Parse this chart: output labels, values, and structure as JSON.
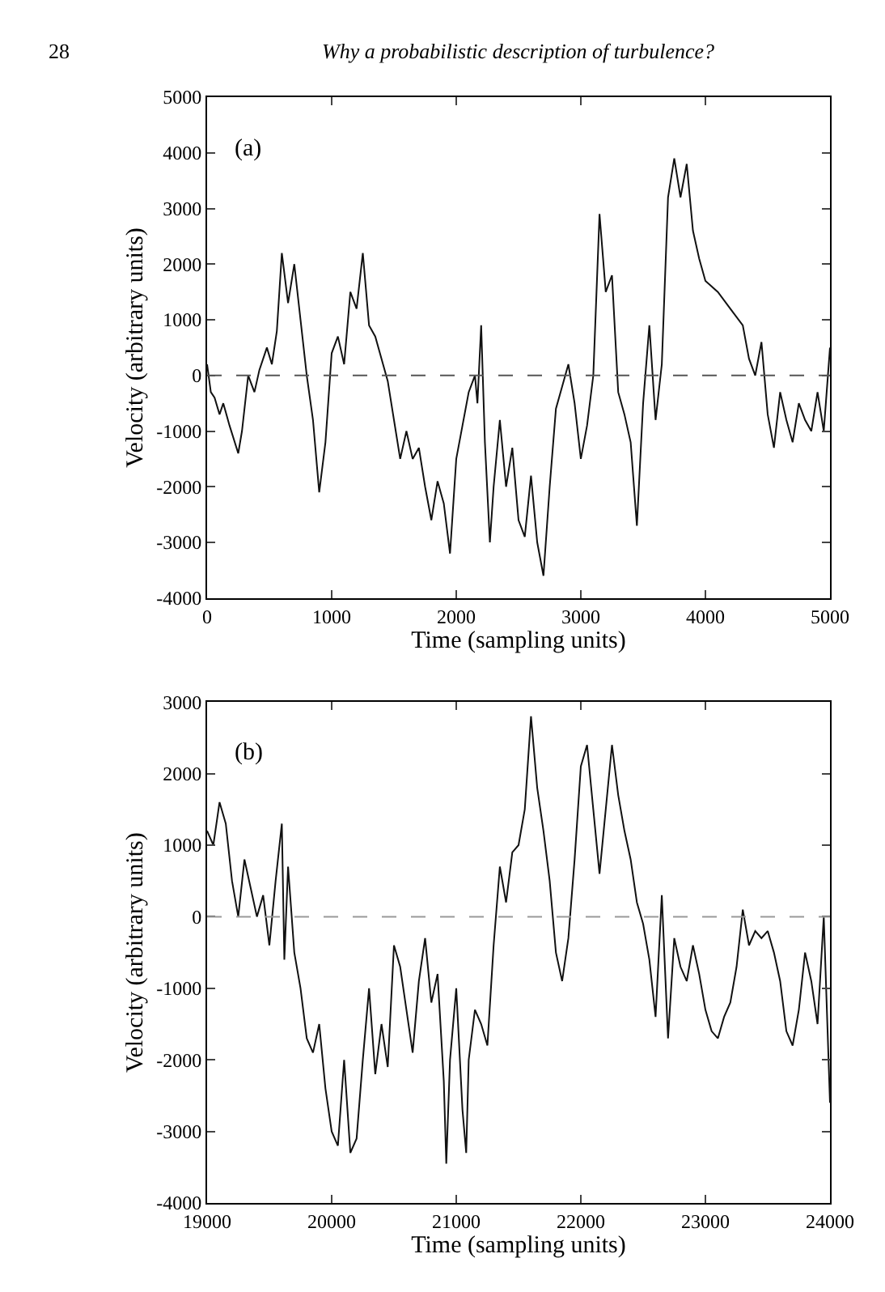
{
  "chart_data": [
    {
      "type": "line",
      "title": "Why a probabilistic description of turbulence?",
      "annotations": [
        "28",
        "(a)"
      ],
      "xlabel": "Time (sampling units)",
      "ylabel": "Velocity (arbitrary units)",
      "xlim": [
        0,
        5000
      ],
      "ylim": [
        -4000,
        5000
      ],
      "xticks": [
        0,
        1000,
        2000,
        3000,
        4000,
        5000
      ],
      "yticks": [
        -4000,
        -3000,
        -2000,
        -1000,
        0,
        1000,
        2000,
        3000,
        4000,
        5000
      ],
      "marker": "none",
      "line_style": "solid",
      "ref_lines": [
        {
          "axis": "y",
          "value": 0,
          "label": null,
          "line_style": "dashed",
          "color": "#555555"
        }
      ],
      "series": [
        {
          "color": "#111111",
          "x": [
            0,
            30,
            60,
            100,
            130,
            180,
            250,
            280,
            330,
            380,
            420,
            480,
            520,
            560,
            600,
            650,
            700,
            750,
            800,
            850,
            900,
            950,
            1000,
            1050,
            1100,
            1150,
            1200,
            1250,
            1300,
            1350,
            1400,
            1450,
            1500,
            1550,
            1600,
            1650,
            1700,
            1750,
            1800,
            1850,
            1900,
            1950,
            2000,
            2050,
            2100,
            2150,
            2170,
            2200,
            2230,
            2270,
            2300,
            2350,
            2400,
            2450,
            2500,
            2550,
            2600,
            2650,
            2700,
            2750,
            2800,
            2850,
            2900,
            2950,
            3000,
            3050,
            3100,
            3150,
            3200,
            3250,
            3300,
            3350,
            3400,
            3450,
            3500,
            3550,
            3600,
            3650,
            3700,
            3750,
            3800,
            3850,
            3900,
            3950,
            4000,
            4100,
            4200,
            4300,
            4350,
            4400,
            4450,
            4500,
            4550,
            4600,
            4650,
            4700,
            4750,
            4800,
            4850,
            4900,
            4950,
            5000
          ],
          "values": [
            200,
            -300,
            -400,
            -700,
            -500,
            -900,
            -1400,
            -1000,
            0,
            -300,
            100,
            500,
            200,
            800,
            2200,
            1300,
            2000,
            1000,
            0,
            -800,
            -2100,
            -1200,
            400,
            700,
            200,
            1500,
            1200,
            2200,
            900,
            700,
            300,
            -100,
            -800,
            -1500,
            -1000,
            -1500,
            -1300,
            -2000,
            -2600,
            -1900,
            -2300,
            -3200,
            -1500,
            -900,
            -300,
            0,
            -500,
            900,
            -1200,
            -3000,
            -2000,
            -800,
            -2000,
            -1300,
            -2600,
            -2900,
            -1800,
            -3000,
            -3600,
            -2000,
            -600,
            -200,
            200,
            -500,
            -1500,
            -900,
            0,
            2900,
            1500,
            1800,
            -300,
            -700,
            -1200,
            -2700,
            -500,
            900,
            -800,
            200,
            3200,
            3900,
            3200,
            3800,
            2600,
            2100,
            1700,
            1500,
            1200,
            900,
            300,
            0,
            600,
            -700,
            -1300,
            -300,
            -800,
            -1200,
            -500,
            -800,
            -1000,
            -300,
            -1000,
            500
          ]
        }
      ]
    },
    {
      "type": "line",
      "annotations": [
        "(b)"
      ],
      "xlabel": "Time (sampling units)",
      "ylabel": "Velocity (arbitrary units)",
      "xlim": [
        19000,
        24000
      ],
      "ylim": [
        -4000,
        3000
      ],
      "xticks": [
        19000,
        20000,
        21000,
        22000,
        23000,
        24000
      ],
      "yticks": [
        -4000,
        -3000,
        -2000,
        -1000,
        0,
        1000,
        2000,
        3000
      ],
      "marker": "none",
      "line_style": "solid",
      "ref_lines": [
        {
          "axis": "y",
          "value": 0,
          "label": null,
          "line_style": "dashed",
          "color": "#999999"
        }
      ],
      "series": [
        {
          "color": "#111111",
          "x": [
            19000,
            19050,
            19100,
            19150,
            19200,
            19250,
            19300,
            19350,
            19400,
            19450,
            19500,
            19550,
            19600,
            19620,
            19650,
            19700,
            19750,
            19800,
            19850,
            19900,
            19950,
            20000,
            20050,
            20100,
            20150,
            20200,
            20250,
            20300,
            20350,
            20400,
            20450,
            20500,
            20550,
            20600,
            20650,
            20700,
            20750,
            20800,
            20850,
            20900,
            20920,
            20950,
            21000,
            21050,
            21080,
            21100,
            21150,
            21200,
            21250,
            21300,
            21350,
            21400,
            21450,
            21500,
            21550,
            21600,
            21650,
            21700,
            21750,
            21800,
            21850,
            21900,
            21950,
            22000,
            22050,
            22100,
            22150,
            22200,
            22250,
            22300,
            22350,
            22400,
            22450,
            22500,
            22550,
            22600,
            22650,
            22700,
            22750,
            22800,
            22850,
            22900,
            22950,
            23000,
            23050,
            23100,
            23150,
            23200,
            23250,
            23300,
            23350,
            23400,
            23450,
            23500,
            23550,
            23600,
            23650,
            23700,
            23750,
            23800,
            23850,
            23900,
            23950,
            24000
          ],
          "values": [
            1200,
            1000,
            1600,
            1300,
            500,
            0,
            800,
            400,
            0,
            300,
            -400,
            500,
            1300,
            -600,
            700,
            -500,
            -1000,
            -1700,
            -1900,
            -1500,
            -2400,
            -3000,
            -3200,
            -2000,
            -3300,
            -3100,
            -2000,
            -1000,
            -2200,
            -1500,
            -2100,
            -400,
            -700,
            -1300,
            -1900,
            -900,
            -300,
            -1200,
            -800,
            -2300,
            -3450,
            -2000,
            -1000,
            -2700,
            -3300,
            -2000,
            -1300,
            -1500,
            -1800,
            -400,
            700,
            200,
            900,
            1000,
            1500,
            2800,
            1800,
            1200,
            500,
            -500,
            -900,
            -300,
            800,
            2100,
            2400,
            1500,
            600,
            1500,
            2400,
            1700,
            1200,
            800,
            200,
            -100,
            -600,
            -1400,
            300,
            -1700,
            -300,
            -700,
            -900,
            -400,
            -800,
            -1300,
            -1600,
            -1700,
            -1400,
            -1200,
            -700,
            100,
            -400,
            -200,
            -300,
            -200,
            -500,
            -900,
            -1600,
            -1800,
            -1300,
            -500,
            -900,
            -1500,
            0,
            -2600
          ]
        }
      ]
    }
  ]
}
